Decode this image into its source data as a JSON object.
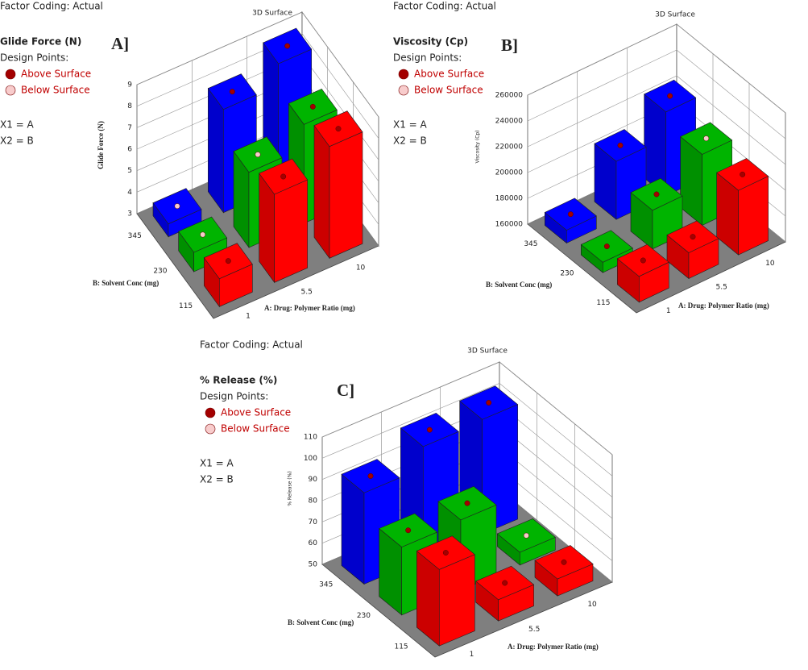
{
  "chart_data": [
    {
      "type": "bar3d",
      "factor_coding": "Factor Coding: Actual",
      "title": "3D Surface",
      "response": "Glide Force (N)",
      "design_points": "Design Points:",
      "legend": [
        {
          "label": "Above Surface",
          "color": "#a30000"
        },
        {
          "label": "Below Surface",
          "color": "#f8cccc"
        }
      ],
      "factors": [
        "X1 = A",
        "X2 = B"
      ],
      "panel_label": "A]",
      "xlabel": "A: Drug: Polymer Ratio (mg)",
      "ylabel": "B: Solvent Conc (mg)",
      "zlabel": "Glide Force (N)",
      "x_categories": [
        1,
        5.5,
        10
      ],
      "y_categories": [
        115,
        230,
        345
      ],
      "zlim": [
        3,
        9
      ],
      "zticks": [
        3,
        4,
        5,
        6,
        7,
        8,
        9
      ],
      "row_colors": [
        "#ff0000",
        "#00b400",
        "#0000ff"
      ],
      "values": [
        [
          4.3,
          7.1,
          8.2
        ],
        [
          3.9,
          6.5,
          7.6
        ],
        [
          3.6,
          7.8,
          8.8
        ]
      ],
      "point_colors": [
        [
          "#a30000",
          "#a30000",
          "#a30000"
        ],
        [
          "#f8cccc",
          "#f8cccc",
          "#a30000"
        ],
        [
          "#f8cccc",
          "#a30000",
          "#a30000"
        ]
      ]
    },
    {
      "type": "bar3d",
      "factor_coding": "Factor Coding: Actual",
      "title": "3D Surface",
      "response": "Viscosity (Cp)",
      "design_points": "Design Points:",
      "legend": [
        {
          "label": "Above Surface",
          "color": "#a30000"
        },
        {
          "label": "Below Surface",
          "color": "#f8cccc"
        }
      ],
      "factors": [
        "X1 = A",
        "X2 = B"
      ],
      "panel_label": "B]",
      "xlabel": "A: Drug: Polymer Ratio (mg)",
      "ylabel": "B: Solvent Conc (mg)",
      "zlabel": "Viscosity (Cp)",
      "x_categories": [
        1,
        5.5,
        10
      ],
      "y_categories": [
        115,
        230,
        345
      ],
      "zlim": [
        160000,
        260000
      ],
      "zticks": [
        160000,
        180000,
        200000,
        220000,
        240000,
        260000
      ],
      "row_colors": [
        "#ff0000",
        "#00b400",
        "#0000ff"
      ],
      "values": [
        [
          180000,
          180000,
          210000
        ],
        [
          168000,
          190000,
          215000
        ],
        [
          170000,
          205000,
          225000
        ]
      ],
      "point_colors": [
        [
          "#a30000",
          "#a30000",
          "#a30000"
        ],
        [
          "#a30000",
          "#a30000",
          "#f8cccc"
        ],
        [
          "#a30000",
          "#a30000",
          "#a30000"
        ]
      ]
    },
    {
      "type": "bar3d",
      "factor_coding": "Factor Coding: Actual",
      "title": "3D Surface",
      "response": "% Release (%)",
      "design_points": "Design Points:",
      "legend": [
        {
          "label": "Above Surface",
          "color": "#a30000"
        },
        {
          "label": "Below Surface",
          "color": "#f8cccc"
        }
      ],
      "factors": [
        "X1 = A",
        "X2 = B"
      ],
      "panel_label": "C]",
      "xlabel": "A: Drug: Polymer Ratio (mg)",
      "ylabel": "B: Solvent Conc (mg)",
      "zlabel": "% Release (%)",
      "x_categories": [
        1,
        5.5,
        10
      ],
      "y_categories": [
        115,
        230,
        345
      ],
      "zlim": [
        50,
        110
      ],
      "zticks": [
        50,
        60,
        70,
        80,
        90,
        100,
        110
      ],
      "row_colors": [
        "#ff0000",
        "#00b400",
        "#0000ff"
      ],
      "values": [
        [
          86,
          60,
          58
        ],
        [
          82,
          83,
          56
        ],
        [
          93,
          103,
          104
        ]
      ],
      "point_colors": [
        [
          "#a30000",
          "#a30000",
          "#a30000"
        ],
        [
          "#a30000",
          "#a30000",
          "#f8cccc"
        ],
        [
          "#a30000",
          "#a30000",
          "#a30000"
        ]
      ]
    }
  ]
}
